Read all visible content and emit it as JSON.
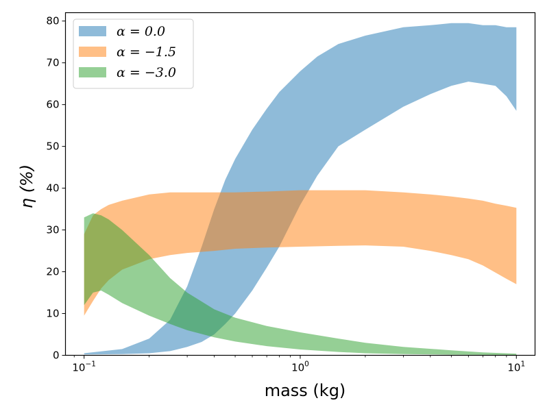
{
  "chart_data": {
    "type": "area",
    "xscale": "log",
    "xlabel": "mass (kg)",
    "ylabel": "η (%)",
    "xlim": [
      0.082,
      12.2
    ],
    "ylim": [
      0,
      82
    ],
    "x_ticks": [
      {
        "value": 0.1,
        "base": "10",
        "exp": "−1"
      },
      {
        "value": 1,
        "base": "10",
        "exp": "0"
      },
      {
        "value": 10,
        "base": "10",
        "exp": "1"
      }
    ],
    "y_ticks": [
      0,
      10,
      20,
      30,
      40,
      50,
      60,
      70,
      80
    ],
    "legend_position": "top-left",
    "series": [
      {
        "name": "α = 0.0",
        "color": "#1f77b4",
        "x": [
          0.1,
          0.15,
          0.2,
          0.25,
          0.3,
          0.35,
          0.4,
          0.45,
          0.5,
          0.6,
          0.7,
          0.8,
          1.0,
          1.2,
          1.5,
          2.0,
          3.0,
          4.0,
          5.0,
          6.0,
          7.0,
          8.0,
          9.0,
          10.0
        ],
        "lower": [
          0.2,
          0.3,
          0.5,
          1.0,
          2.0,
          3.2,
          5.0,
          7.5,
          10.0,
          15.5,
          21.0,
          26.0,
          36.0,
          43.0,
          50.0,
          54.0,
          59.5,
          62.5,
          64.5,
          65.5,
          65.0,
          64.5,
          62.0,
          58.5
        ],
        "upper": [
          0.5,
          1.5,
          4.0,
          8.5,
          16.5,
          26.0,
          35.0,
          42.0,
          47.0,
          54.0,
          59.0,
          63.0,
          68.0,
          71.5,
          74.5,
          76.5,
          78.5,
          79.0,
          79.5,
          79.5,
          79.0,
          79.0,
          78.5,
          78.5
        ]
      },
      {
        "name": "α = −1.5",
        "color": "#ff7f0e",
        "x": [
          0.1,
          0.11,
          0.12,
          0.13,
          0.15,
          0.2,
          0.25,
          0.3,
          0.4,
          0.5,
          0.7,
          1.0,
          1.5,
          2.0,
          3.0,
          4.0,
          5.0,
          6.0,
          7.0,
          8.0,
          9.0,
          10.0
        ],
        "lower": [
          9.5,
          13.0,
          16.0,
          18.0,
          20.5,
          23.0,
          24.0,
          24.5,
          25.0,
          25.5,
          25.8,
          26.0,
          26.2,
          26.3,
          26.0,
          25.0,
          24.0,
          23.0,
          21.5,
          19.8,
          18.3,
          17.0
        ],
        "upper": [
          29.0,
          33.5,
          35.0,
          36.0,
          37.0,
          38.5,
          39.0,
          39.0,
          39.0,
          39.0,
          39.2,
          39.5,
          39.5,
          39.5,
          39.0,
          38.5,
          38.0,
          37.5,
          37.0,
          36.3,
          35.8,
          35.3
        ]
      },
      {
        "name": "α = −3.0",
        "color": "#2ca02c",
        "x": [
          0.1,
          0.11,
          0.12,
          0.13,
          0.15,
          0.2,
          0.25,
          0.3,
          0.4,
          0.5,
          0.7,
          1.0,
          1.5,
          2.0,
          3.0,
          5.0,
          7.0,
          10.0
        ],
        "lower": [
          12.0,
          15.0,
          15.5,
          14.5,
          12.5,
          9.5,
          7.5,
          6.0,
          4.3,
          3.3,
          2.2,
          1.4,
          0.8,
          0.5,
          0.3,
          0.15,
          0.1,
          0.05
        ],
        "upper": [
          33.0,
          34.0,
          33.5,
          32.5,
          30.0,
          24.0,
          18.5,
          15.0,
          11.0,
          9.0,
          7.0,
          5.5,
          4.0,
          3.0,
          2.0,
          1.2,
          0.7,
          0.4
        ]
      }
    ]
  }
}
